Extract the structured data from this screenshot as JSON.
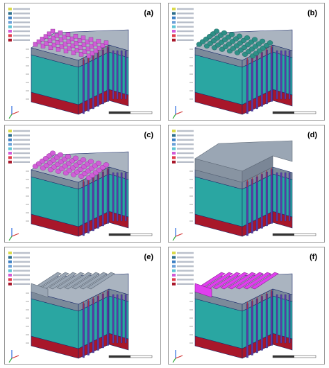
{
  "figure": {
    "panels": [
      {
        "id": "a",
        "label": "(a)",
        "top": "mesa",
        "top_color": "#cf5ed6",
        "top_edge": "#8a2a92"
      },
      {
        "id": "b",
        "label": "(b)",
        "top": "dome",
        "top_color": "#2e8f86",
        "top_edge": "#1f5c57"
      },
      {
        "id": "c",
        "label": "(c)",
        "top": "dome",
        "top_color": "#cf5ed6",
        "top_edge": "#8a2a92"
      },
      {
        "id": "d",
        "label": "(d)",
        "top": "slab",
        "top_color": "#9aa6b4",
        "top_edge": "#5d6876"
      },
      {
        "id": "e",
        "label": "(e)",
        "top": "rails",
        "top_color": "#9aa6b4",
        "top_edge": "#5d6876"
      },
      {
        "id": "f",
        "label": "(f)",
        "top": "rails",
        "top_color": "#e040ee",
        "top_edge": "#8a1f95"
      }
    ],
    "colors": {
      "substrate": "#a8172a",
      "active": "#2aa6a2",
      "cap_layer": "#7c8a9a",
      "pillar": "#5b3aa8",
      "trace": "#b22a3a",
      "line": "#1b2b6b"
    }
  }
}
